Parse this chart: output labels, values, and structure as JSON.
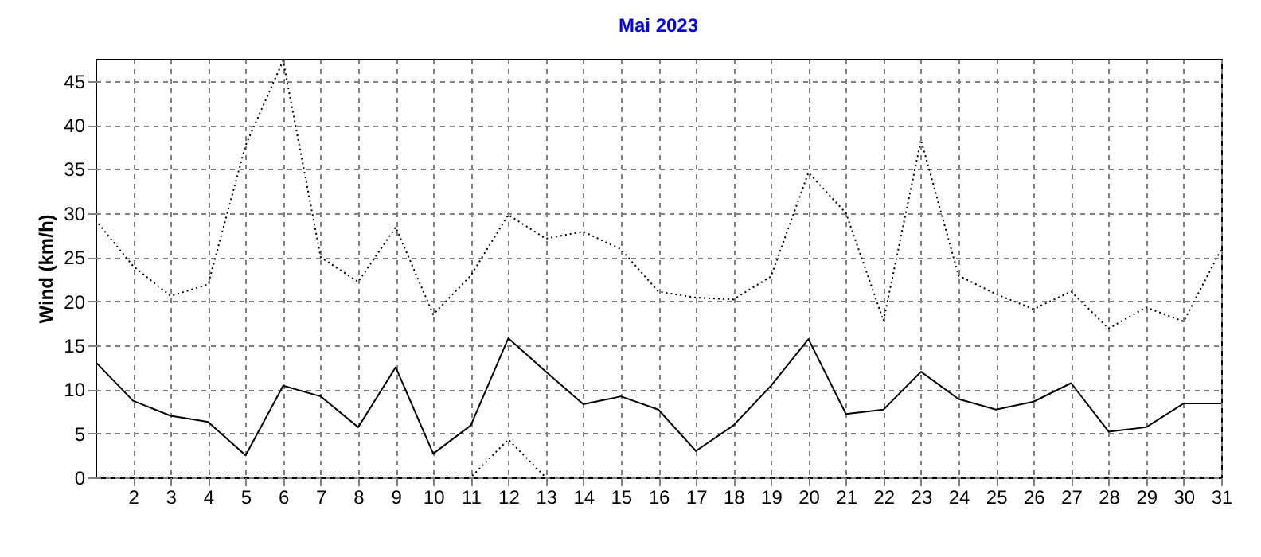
{
  "chart_data": {
    "type": "line",
    "title": "Mai 2023",
    "ylabel": "Wind  (km/h)",
    "x": [
      1,
      2,
      3,
      4,
      5,
      6,
      7,
      8,
      9,
      10,
      11,
      12,
      13,
      14,
      15,
      16,
      17,
      18,
      19,
      20,
      21,
      22,
      23,
      24,
      25,
      26,
      27,
      28,
      29,
      30,
      31
    ],
    "series": [
      {
        "color": "#000000",
        "line_style": "dotted",
        "values": [
          29.2,
          24,
          20.6,
          21.9,
          37.7,
          47.3,
          25.0,
          22.2,
          28.4,
          18.5,
          22.9,
          29.8,
          27.1,
          27.9,
          25.9,
          21.1,
          20.4,
          20.2,
          22.8,
          34.6,
          30.0,
          17.8,
          38.3,
          22.9,
          20.8,
          19.1,
          21.1,
          16.9,
          19.3,
          17.7,
          25.9
        ]
      },
      {
        "color": "#000000",
        "line_style": "solid",
        "values": [
          13.1,
          8.7,
          7.0,
          6.3,
          2.5,
          10.4,
          9.2,
          5.7,
          12.5,
          2.7,
          5.9,
          15.8,
          12.0,
          8.3,
          9.2,
          7.7,
          3.0,
          5.9,
          10.4,
          15.7,
          7.2,
          7.7,
          12.0,
          8.9,
          7.7,
          8.6,
          10.7,
          5.2,
          5.7,
          8.4,
          8.4
        ]
      },
      {
        "color": "#000000",
        "line_style": "dotted",
        "values": [
          0,
          0,
          0,
          0,
          0,
          0,
          0,
          0,
          0,
          0,
          0,
          4.3,
          0,
          0,
          0,
          0,
          0,
          0,
          0,
          0,
          0,
          0,
          0,
          0,
          0,
          0,
          0,
          0,
          0,
          0,
          0
        ]
      }
    ],
    "xlim": [
      1,
      31
    ],
    "xticks": [
      2,
      3,
      4,
      5,
      6,
      7,
      8,
      9,
      10,
      11,
      12,
      13,
      14,
      15,
      16,
      17,
      18,
      19,
      20,
      21,
      22,
      23,
      24,
      25,
      26,
      27,
      28,
      29,
      30,
      31
    ],
    "ylim": [
      0,
      47.5
    ],
    "yticks": [
      0,
      5,
      10,
      15,
      20,
      25,
      30,
      35,
      40,
      45
    ],
    "grid": true
  }
}
